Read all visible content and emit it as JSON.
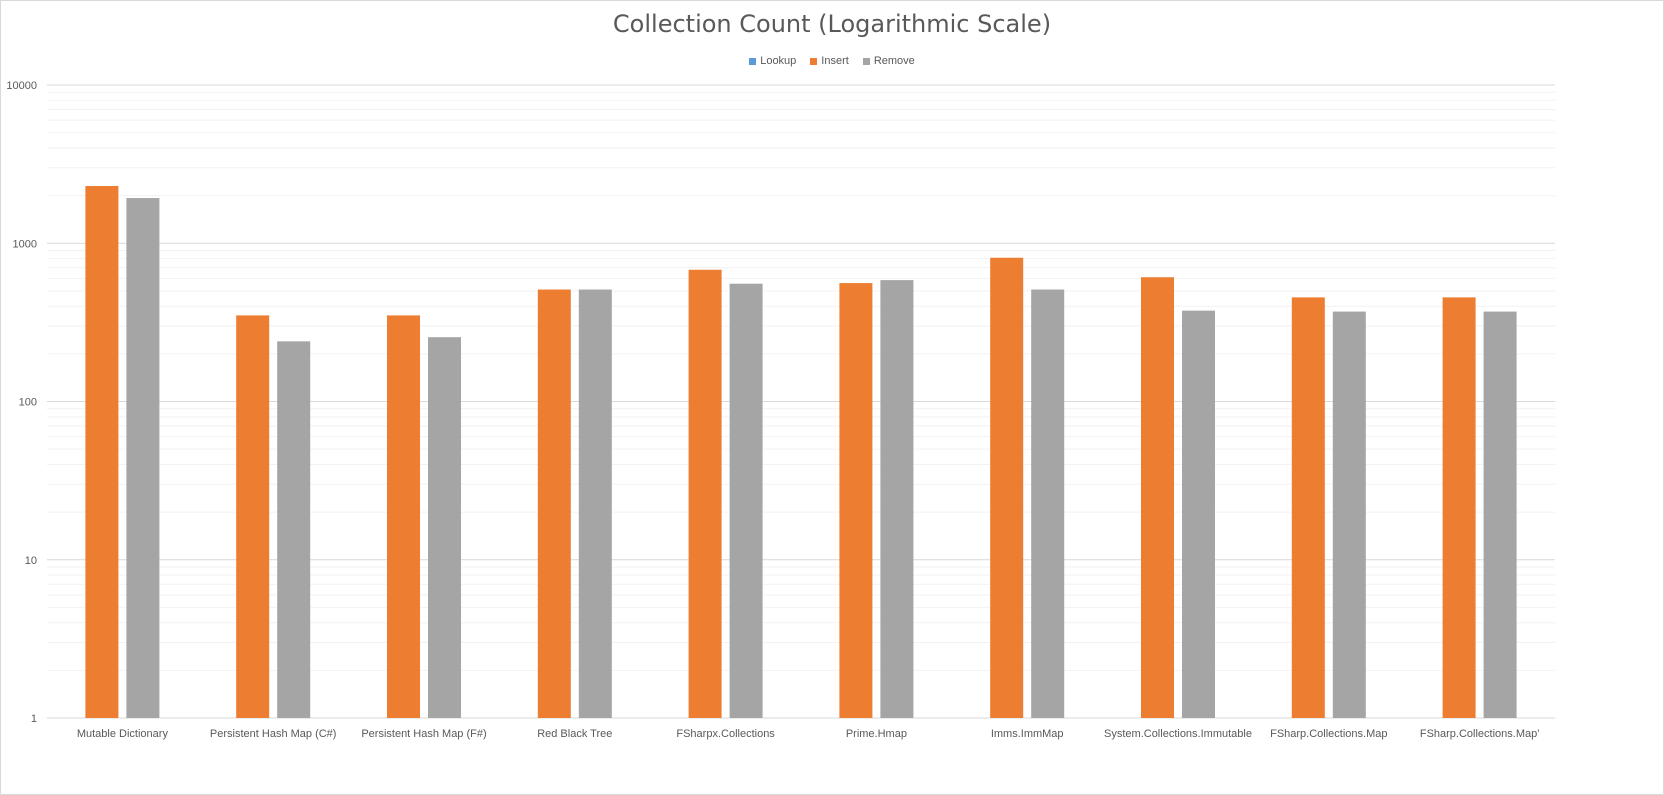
{
  "chart_data": {
    "type": "bar",
    "title": "Collection Count (Logarithmic Scale)",
    "xlabel": "",
    "ylabel": "",
    "y_scale": "log",
    "ylim": [
      1,
      10000
    ],
    "y_ticks": [
      "1",
      "10",
      "100",
      "1000",
      "10000"
    ],
    "grid": true,
    "legend_position": "top-center",
    "categories": [
      "Mutable Dictionary",
      "Persistent Hash Map (C#)",
      "Persistent Hash Map (F#)",
      "Red Black Tree",
      "FSharpx.Collections",
      "Prime.Hmap",
      "Imms.ImmMap",
      "System.Collections.Immutable",
      "FSharp.Collections.Map",
      "FSharp.Collections.Map'"
    ],
    "series": [
      {
        "name": "Lookup",
        "color": "#5b9bd5",
        "values": [
          null,
          null,
          null,
          null,
          null,
          null,
          null,
          null,
          null,
          null
        ]
      },
      {
        "name": "Insert",
        "color": "#ed7d31",
        "values": [
          2300,
          350,
          350,
          510,
          680,
          560,
          810,
          610,
          455,
          455
        ]
      },
      {
        "name": "Remove",
        "color": "#a5a5a5",
        "values": [
          1930,
          240,
          255,
          510,
          555,
          585,
          510,
          375,
          370,
          370
        ]
      }
    ]
  }
}
